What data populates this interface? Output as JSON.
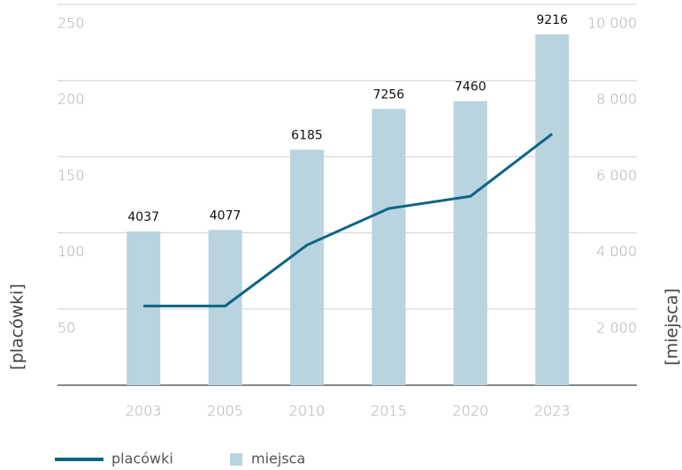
{
  "chart_data": {
    "type": "bar-line",
    "categories": [
      "2003",
      "2005",
      "2010",
      "2015",
      "2020",
      "2023"
    ],
    "series": [
      {
        "name": "placówki",
        "type": "line",
        "color": "#0b6485",
        "values": [
          52,
          52,
          92,
          116,
          124,
          165
        ]
      },
      {
        "name": "miejsca",
        "type": "bar",
        "axis": "y2",
        "color": "#b9d3df",
        "values": [
          4037,
          4077,
          6185,
          7256,
          7460,
          9216
        ]
      }
    ],
    "ylabel": "[placówki]",
    "y2label": "[miejsca]",
    "ylim": [
      0,
      250
    ],
    "yticks": [
      50,
      100,
      150,
      200,
      250
    ],
    "y2lim": [
      0,
      10000
    ],
    "y2ticks": [
      {
        "value": 2000,
        "label": "2 000"
      },
      {
        "value": 4000,
        "label": "4 000"
      },
      {
        "value": 6000,
        "label": "6 000"
      },
      {
        "value": 8000,
        "label": "8 000"
      },
      {
        "value": 10000,
        "label": "10 000"
      }
    ],
    "grid": true,
    "legend": "bottom-left"
  }
}
